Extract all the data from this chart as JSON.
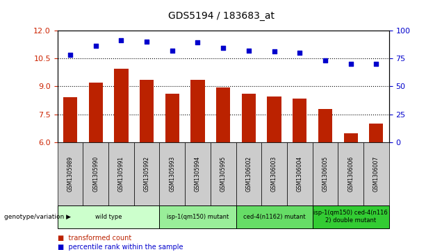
{
  "title": "GDS5194 / 183683_at",
  "samples": [
    "GSM1305989",
    "GSM1305990",
    "GSM1305991",
    "GSM1305992",
    "GSM1305993",
    "GSM1305994",
    "GSM1305995",
    "GSM1306002",
    "GSM1306003",
    "GSM1306004",
    "GSM1306005",
    "GSM1306006",
    "GSM1306007"
  ],
  "transformed_count": [
    8.4,
    9.2,
    9.95,
    9.35,
    8.6,
    9.35,
    8.95,
    8.6,
    8.45,
    8.35,
    7.8,
    6.5,
    7.0
  ],
  "percentile_rank": [
    78,
    86,
    91,
    90,
    82,
    89,
    84,
    82,
    81,
    80,
    73,
    70,
    70
  ],
  "ylim_left": [
    6,
    12
  ],
  "ylim_right": [
    0,
    100
  ],
  "yticks_left": [
    6,
    7.5,
    9,
    10.5,
    12
  ],
  "yticks_right": [
    0,
    25,
    50,
    75,
    100
  ],
  "bar_color": "#bb2200",
  "dot_color": "#0000cc",
  "groups": [
    {
      "label": "wild type",
      "start": 0,
      "end": 3,
      "color": "#ccffcc"
    },
    {
      "label": "isp-1(qm150) mutant",
      "start": 4,
      "end": 6,
      "color": "#99ee99"
    },
    {
      "label": "ced-4(n1162) mutant",
      "start": 7,
      "end": 9,
      "color": "#66dd66"
    },
    {
      "label": "isp-1(qm150) ced-4(n116\n2) double mutant",
      "start": 10,
      "end": 12,
      "color": "#33cc33"
    }
  ],
  "genotype_label": "genotype/variation",
  "legend_bar_label": "transformed count",
  "legend_dot_label": "percentile rank within the sample",
  "tick_color_left": "#cc2200",
  "tick_color_right": "#0000cc",
  "sample_box_color": "#cccccc",
  "plot_bg": "#ffffff"
}
